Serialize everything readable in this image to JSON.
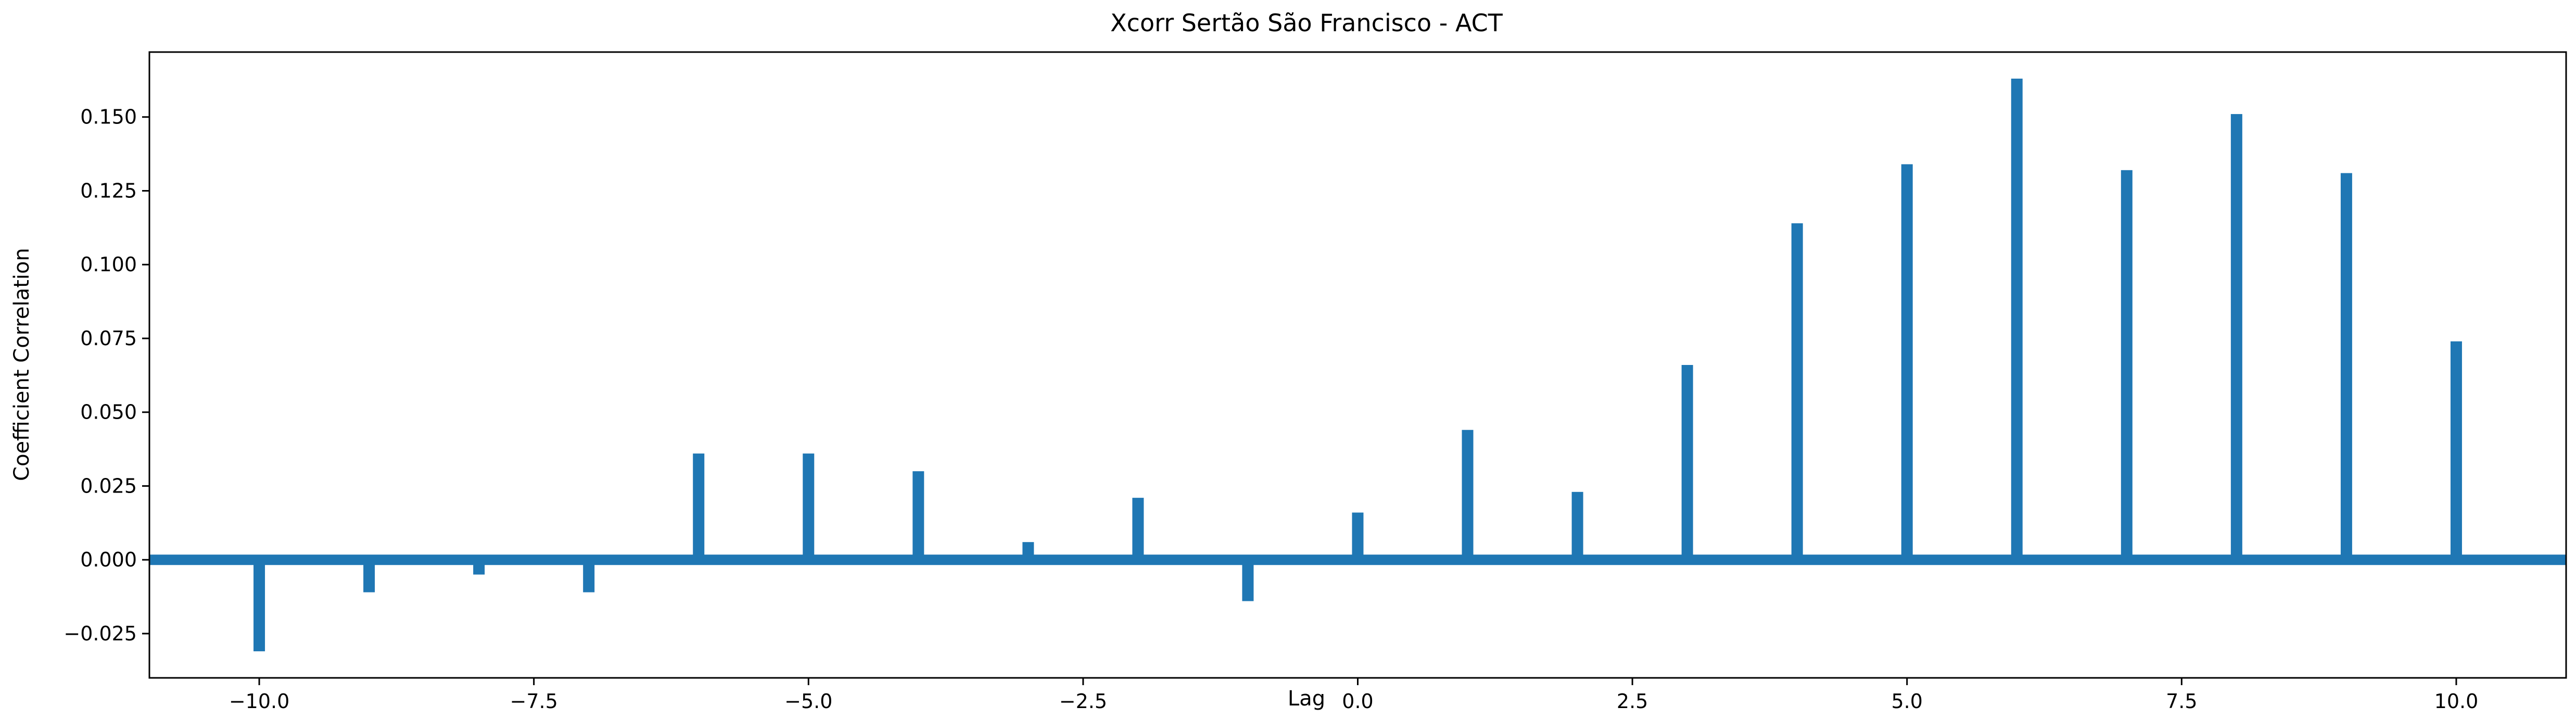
{
  "chart_data": {
    "type": "bar",
    "title": "Xcorr Sertão São Francisco - ACT",
    "xlabel": "Lag",
    "ylabel": "Coefficient Correlation",
    "xlim": [
      -11,
      11
    ],
    "ylim": [
      -0.04,
      0.172
    ],
    "xticks": [
      -10.0,
      -7.5,
      -5.0,
      -2.5,
      0.0,
      2.5,
      5.0,
      7.5,
      10.0
    ],
    "xtick_labels": [
      "−10.0",
      "−7.5",
      "−5.0",
      "−2.5",
      "0.0",
      "2.5",
      "5.0",
      "7.5",
      "10.0"
    ],
    "yticks": [
      -0.025,
      0.0,
      0.025,
      0.05,
      0.075,
      0.1,
      0.125,
      0.15
    ],
    "ytick_labels": [
      "−0.025",
      "0.000",
      "0.025",
      "0.050",
      "0.075",
      "0.100",
      "0.125",
      "0.150"
    ],
    "x": [
      -10,
      -9,
      -8,
      -7,
      -6,
      -5,
      -4,
      -3,
      -2,
      -1,
      0,
      1,
      2,
      3,
      4,
      5,
      6,
      7,
      8,
      9,
      10
    ],
    "values": [
      -0.031,
      -0.011,
      -0.005,
      -0.011,
      0.036,
      0.036,
      0.03,
      0.006,
      0.021,
      -0.014,
      0.016,
      0.044,
      0.023,
      0.066,
      0.114,
      0.134,
      0.163,
      0.132,
      0.151,
      0.131,
      0.074
    ],
    "baseline": 0,
    "grid": false,
    "color": "#1f77b4"
  }
}
